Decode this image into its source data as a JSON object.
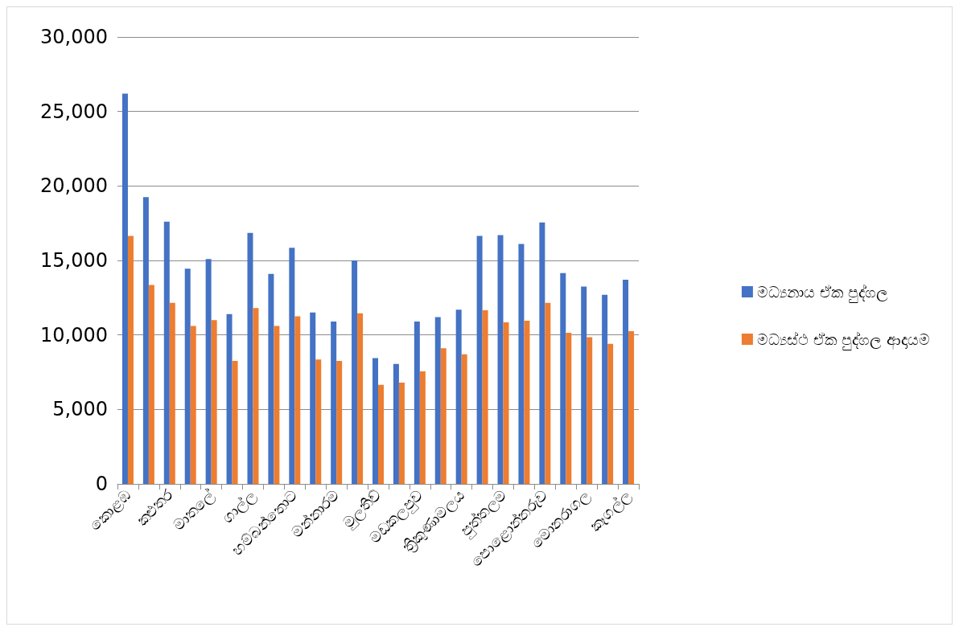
{
  "chart_data": {
    "type": "bar",
    "categories": [
      "කොළඹ",
      null,
      "කළුතර",
      null,
      "මාතලේ",
      null,
      "ගාල්ල",
      null,
      "හම්බන්තොට",
      null,
      "මන්නාරම",
      null,
      "මුලතිව්",
      null,
      "මඩකලපුව",
      null,
      "ත්‍රිකුණාමලය",
      null,
      "පුත්තලම",
      null,
      "පොළොන්නරුව",
      null,
      "මොනරාගල",
      null,
      "කෑගල්ල"
    ],
    "series": [
      {
        "name": "මධ්‍යනාය ඒක පුද්ගල",
        "color": "#4472c4",
        "values": [
          26200,
          19250,
          17600,
          14450,
          15100,
          11400,
          16850,
          14100,
          15850,
          11500,
          10900,
          15000,
          8450,
          8050,
          10900,
          11200,
          11700,
          16650,
          16700,
          16100,
          17550,
          14150,
          13250,
          12700,
          13700
        ]
      },
      {
        "name": "මධ්‍යස්ථ ඒක පුද්ගල ආදායම",
        "color": "#ed7d31",
        "values": [
          16650,
          13350,
          12150,
          10600,
          11000,
          8250,
          11800,
          10600,
          11250,
          8350,
          8250,
          11450,
          6650,
          6800,
          7550,
          9100,
          8700,
          11650,
          10850,
          10950,
          12150,
          10150,
          9850,
          9400,
          10250
        ]
      }
    ],
    "ylim": [
      0,
      30000
    ],
    "yticks": [
      0,
      {
        "value": 5000,
        "label": "5,000"
      },
      {
        "value": 10000,
        "label": "10,000"
      },
      {
        "value": 15000,
        "label": "15,000"
      },
      {
        "value": 20000,
        "label": "20,000"
      },
      {
        "value": 25000,
        "label": "25,000"
      },
      {
        "value": 30000,
        "label": "30,000"
      }
    ],
    "grid": "y",
    "legend": "right"
  }
}
